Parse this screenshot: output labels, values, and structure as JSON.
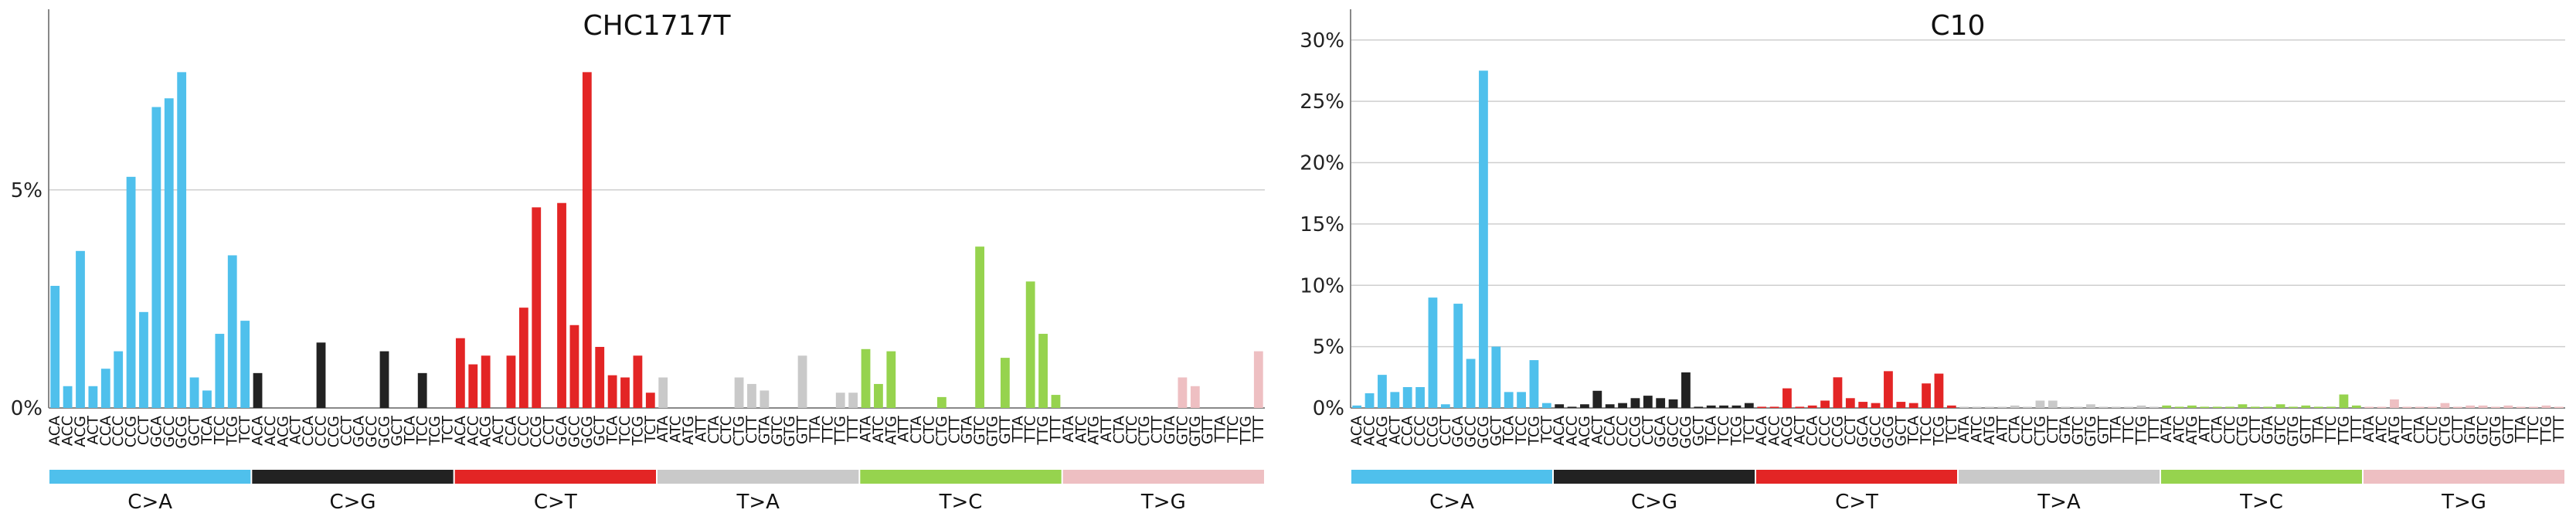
{
  "chart_data": [
    {
      "type": "bar",
      "title": "CHC1717T",
      "xlabel": "",
      "ylabel": "",
      "ylim": [
        0,
        9
      ],
      "yticks": [
        0,
        5
      ],
      "tick_labels": [
        "0%",
        "5%"
      ],
      "grid": true,
      "groups": [
        "C>A",
        "C>G",
        "C>T",
        "T>A",
        "T>C",
        "T>G"
      ],
      "group_colors": [
        "#4fc0ec",
        "#222222",
        "#e32525",
        "#c9c9c9",
        "#96d34e",
        "#eebfc2"
      ],
      "categories": [
        "ACA",
        "ACC",
        "ACG",
        "ACT",
        "CCA",
        "CCC",
        "CCG",
        "CCT",
        "GCA",
        "GCC",
        "GCG",
        "GCT",
        "TCA",
        "TCC",
        "TCG",
        "TCT",
        "ACA",
        "ACC",
        "ACG",
        "ACT",
        "CCA",
        "CCC",
        "CCG",
        "CCT",
        "GCA",
        "GCC",
        "GCG",
        "GCT",
        "TCA",
        "TCC",
        "TCG",
        "TCT",
        "ACA",
        "ACC",
        "ACG",
        "ACT",
        "CCA",
        "CCC",
        "CCG",
        "CCT",
        "GCA",
        "GCC",
        "GCG",
        "GCT",
        "TCA",
        "TCC",
        "TCG",
        "TCT",
        "ATA",
        "ATC",
        "ATG",
        "ATT",
        "CTA",
        "CTC",
        "CTG",
        "CTT",
        "GTA",
        "GTC",
        "GTG",
        "GTT",
        "TTA",
        "TTC",
        "TTG",
        "TTT",
        "ATA",
        "ATC",
        "ATG",
        "ATT",
        "CTA",
        "CTC",
        "CTG",
        "CTT",
        "GTA",
        "GTC",
        "GTG",
        "GTT",
        "TTA",
        "TTC",
        "TTG",
        "TTT",
        "ATA",
        "ATC",
        "ATG",
        "ATT",
        "CTA",
        "CTC",
        "CTG",
        "CTT",
        "GTA",
        "GTC",
        "GTG",
        "GTT",
        "TTA",
        "TTC",
        "TTG",
        "TTT"
      ],
      "values": [
        2.8,
        0.5,
        3.6,
        0.5,
        0.9,
        1.3,
        5.3,
        2.2,
        6.9,
        7.1,
        7.7,
        0.7,
        0.4,
        1.7,
        3.5,
        2.0,
        0.8,
        0,
        0,
        0,
        0,
        1.5,
        0,
        0,
        0,
        0,
        1.3,
        0,
        0,
        0.8,
        0,
        0,
        1.6,
        1.0,
        1.2,
        0,
        1.2,
        2.3,
        4.6,
        0,
        4.7,
        1.9,
        7.7,
        1.4,
        0.75,
        0.7,
        1.2,
        0.35,
        0.7,
        0,
        0,
        0,
        0,
        0,
        0.7,
        0.55,
        0.4,
        0,
        0,
        1.2,
        0,
        0,
        0.35,
        0.35,
        1.35,
        0.55,
        1.3,
        0,
        0,
        0,
        0.25,
        0,
        0,
        3.7,
        0,
        1.15,
        0,
        2.9,
        1.7,
        0.3,
        0,
        0,
        0,
        0,
        0,
        0,
        0,
        0,
        0,
        0.7,
        0.5,
        0,
        0,
        0,
        0,
        1.3
      ]
    },
    {
      "type": "bar",
      "title": "C10",
      "xlabel": "",
      "ylabel": "",
      "ylim": [
        0,
        32
      ],
      "yticks": [
        0,
        5,
        10,
        15,
        20,
        25,
        30
      ],
      "tick_labels": [
        "0%",
        "5%",
        "10%",
        "15%",
        "20%",
        "25%",
        "30%"
      ],
      "grid": true,
      "groups": [
        "C>A",
        "C>G",
        "C>T",
        "T>A",
        "T>C",
        "T>G"
      ],
      "group_colors": [
        "#4fc0ec",
        "#222222",
        "#e32525",
        "#c9c9c9",
        "#96d34e",
        "#eebfc2"
      ],
      "categories": [
        "ACA",
        "ACC",
        "ACG",
        "ACT",
        "CCA",
        "CCC",
        "CCG",
        "CCT",
        "GCA",
        "GCC",
        "GCG",
        "GCT",
        "TCA",
        "TCC",
        "TCG",
        "TCT",
        "ACA",
        "ACC",
        "ACG",
        "ACT",
        "CCA",
        "CCC",
        "CCG",
        "CCT",
        "GCA",
        "GCC",
        "GCG",
        "GCT",
        "TCA",
        "TCC",
        "TCG",
        "TCT",
        "ACA",
        "ACC",
        "ACG",
        "ACT",
        "CCA",
        "CCC",
        "CCG",
        "CCT",
        "GCA",
        "GCC",
        "GCG",
        "GCT",
        "TCA",
        "TCC",
        "TCG",
        "TCT",
        "ATA",
        "ATC",
        "ATG",
        "ATT",
        "CTA",
        "CTC",
        "CTG",
        "CTT",
        "GTA",
        "GTC",
        "GTG",
        "GTT",
        "TTA",
        "TTC",
        "TTG",
        "TTT",
        "ATA",
        "ATC",
        "ATG",
        "ATT",
        "CTA",
        "CTC",
        "CTG",
        "CTT",
        "GTA",
        "GTC",
        "GTG",
        "GTT",
        "TTA",
        "TTC",
        "TTG",
        "TTT",
        "ATA",
        "ATC",
        "ATG",
        "ATT",
        "CTA",
        "CTC",
        "CTG",
        "CTT",
        "GTA",
        "GTC",
        "GTG",
        "GTT",
        "TTA",
        "TTC",
        "TTG",
        "TTT"
      ],
      "values": [
        0.2,
        1.2,
        2.7,
        1.3,
        1.7,
        1.7,
        9.0,
        0.3,
        8.5,
        4.0,
        27.5,
        5.0,
        1.3,
        1.3,
        3.9,
        0.4,
        0.3,
        0.1,
        0.3,
        1.4,
        0.3,
        0.4,
        0.8,
        1.0,
        0.8,
        0.7,
        2.9,
        0.1,
        0.2,
        0.2,
        0.2,
        0.4,
        0.1,
        0.1,
        1.6,
        0.1,
        0.2,
        0.6,
        2.5,
        0.8,
        0.5,
        0.4,
        3.0,
        0.5,
        0.4,
        2.0,
        2.8,
        0.2,
        0.1,
        0.1,
        0.1,
        0.1,
        0.2,
        0.1,
        0.6,
        0.6,
        0.1,
        0.1,
        0.3,
        0.1,
        0.1,
        0.1,
        0.2,
        0.1,
        0.2,
        0.1,
        0.2,
        0.1,
        0.1,
        0.1,
        0.3,
        0.1,
        0.1,
        0.3,
        0.1,
        0.2,
        0.1,
        0.1,
        1.1,
        0.2,
        0.1,
        0.1,
        0.7,
        0.1,
        0.1,
        0.1,
        0.4,
        0.1,
        0.2,
        0.2,
        0.1,
        0.2,
        0.1,
        0.1,
        0.2,
        0.1
      ]
    }
  ]
}
